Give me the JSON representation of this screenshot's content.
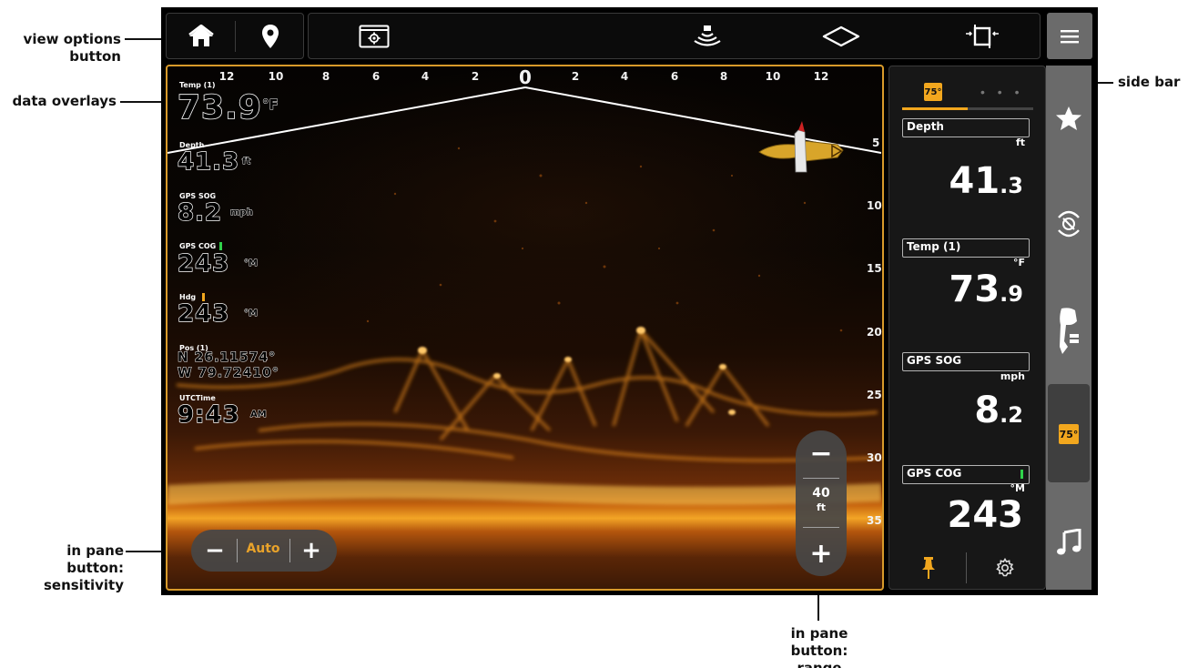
{
  "callouts": {
    "view_options_line1": "view options",
    "view_options_line2": "button",
    "data_overlays": "data overlays",
    "side_bar": "side bar",
    "sens_line1": "in pane",
    "sens_line2": "button:",
    "sens_line3": "sensitivity",
    "range_line1": "in pane",
    "range_line2": "button: range"
  },
  "sonar": {
    "horizontal_scale": [
      "12",
      "10",
      "8",
      "6",
      "4",
      "2",
      "0",
      "2",
      "4",
      "6",
      "8",
      "10",
      "12"
    ],
    "depth_scale": [
      "5",
      "10",
      "15",
      "20",
      "25",
      "30",
      "35"
    ],
    "palette": {
      "frame": "#d89a2a",
      "bright": "#f3a526"
    }
  },
  "overlays": {
    "temp": {
      "label": "Temp (1)",
      "value": "73.9",
      "unit": "°F"
    },
    "depth": {
      "label": "Depth",
      "value": "41.3",
      "unit": "ft"
    },
    "sog": {
      "label": "GPS SOG",
      "value": "8.2",
      "unit": "mph"
    },
    "cog": {
      "label": "GPS COG",
      "value": "243",
      "unit": "°M",
      "indicator_color": "#2fd14a"
    },
    "hdg": {
      "label": "Hdg",
      "value": "243",
      "unit": "°M",
      "indicator_color": "#f2a71e"
    },
    "pos": {
      "label": "Pos (1)",
      "lat": "N 26.11574°",
      "lon": "W 79.72410°"
    },
    "time": {
      "label": "UTCTime",
      "value": "9:43",
      "unit": "AM"
    }
  },
  "sensitivity": {
    "minus": "−",
    "value": "Auto",
    "plus": "+"
  },
  "range": {
    "minus": "−",
    "value": "40",
    "unit": "ft",
    "plus": "+"
  },
  "sidebar": {
    "tab_badge": "75°",
    "tab_more": "• • •",
    "fields": [
      {
        "label": "Depth",
        "unit": "ft",
        "whole": "41",
        "frac": ".3"
      },
      {
        "label": "Temp (1)",
        "unit": "°F",
        "whole": "73",
        "frac": ".9"
      },
      {
        "label": "GPS SOG",
        "unit": "mph",
        "whole": "8",
        "frac": ".2"
      },
      {
        "label": "GPS COG",
        "unit": "°M",
        "whole": "243",
        "frac": ""
      }
    ]
  },
  "rail": {
    "badge": "75°"
  }
}
